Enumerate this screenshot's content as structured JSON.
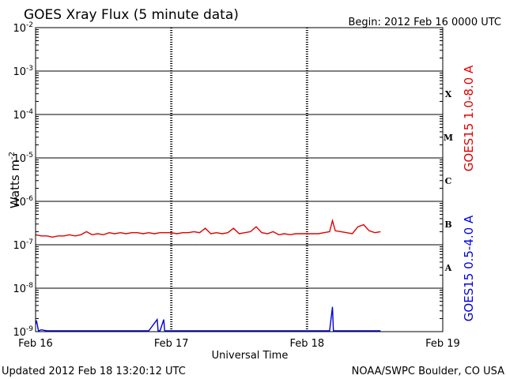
{
  "header": {
    "title": "GOES Xray Flux (5 minute data)",
    "begin": "Begin:  2012 Feb 16 0000 UTC"
  },
  "footer": {
    "updated": "Updated 2012 Feb 18 13:20:12 UTC",
    "credit": "NOAA/SWPC Boulder, CO USA"
  },
  "colors": {
    "long_channel": "#e00000",
    "short_channel": "#0000e0",
    "axis": "#000000",
    "background": "#ffffff"
  },
  "chart_data": {
    "type": "line",
    "title": "GOES Xray Flux (5 minute data)",
    "xlabel": "Universal Time",
    "ylabel": "Watts m",
    "ylabel_superscript": "-2",
    "y_scale": "log",
    "ylim": [
      1e-09,
      0.01
    ],
    "xlim": [
      "2012-02-16T00:00",
      "2012-02-19T00:00"
    ],
    "x_ticks": [
      {
        "label": "Feb 16",
        "value": "2012-02-16T00:00"
      },
      {
        "label": "Feb 17",
        "value": "2012-02-17T00:00"
      },
      {
        "label": "Feb 18",
        "value": "2012-02-18T00:00"
      },
      {
        "label": "Feb 19",
        "value": "2012-02-19T00:00"
      }
    ],
    "y_ticks": [
      {
        "base": "10",
        "exp": "-2",
        "value": 0.01
      },
      {
        "base": "10",
        "exp": "-3",
        "value": 0.001
      },
      {
        "base": "10",
        "exp": "-4",
        "value": 0.0001
      },
      {
        "base": "10",
        "exp": "-5",
        "value": 1e-05
      },
      {
        "base": "10",
        "exp": "-6",
        "value": 1e-06
      },
      {
        "base": "10",
        "exp": "-7",
        "value": 1e-07
      },
      {
        "base": "10",
        "exp": "-8",
        "value": 1e-08
      },
      {
        "base": "10",
        "exp": "-9",
        "value": 1e-09
      }
    ],
    "flare_classes": [
      {
        "label": "X",
        "value": 0.0003
      },
      {
        "label": "M",
        "value": 3e-05
      },
      {
        "label": "C",
        "value": 3e-06
      },
      {
        "label": "B",
        "value": 3e-07
      },
      {
        "label": "A",
        "value": 3e-08
      }
    ],
    "grid": true,
    "series": [
      {
        "name": "GOES15 1.0-8.0 A",
        "color": "#e00000",
        "x": [
          "2012-02-16T00:00",
          "2012-02-16T01:00",
          "2012-02-16T02:00",
          "2012-02-16T03:00",
          "2012-02-16T04:00",
          "2012-02-16T05:00",
          "2012-02-16T06:00",
          "2012-02-16T07:00",
          "2012-02-16T08:00",
          "2012-02-16T09:00",
          "2012-02-16T10:00",
          "2012-02-16T11:00",
          "2012-02-16T12:00",
          "2012-02-16T13:00",
          "2012-02-16T14:00",
          "2012-02-16T15:00",
          "2012-02-16T16:00",
          "2012-02-16T17:00",
          "2012-02-16T18:00",
          "2012-02-16T19:00",
          "2012-02-16T20:00",
          "2012-02-16T21:00",
          "2012-02-16T22:00",
          "2012-02-16T23:00",
          "2012-02-17T00:00",
          "2012-02-17T01:00",
          "2012-02-17T02:00",
          "2012-02-17T03:00",
          "2012-02-17T04:00",
          "2012-02-17T05:00",
          "2012-02-17T06:00",
          "2012-02-17T07:00",
          "2012-02-17T08:00",
          "2012-02-17T09:00",
          "2012-02-17T10:00",
          "2012-02-17T11:00",
          "2012-02-17T12:00",
          "2012-02-17T13:00",
          "2012-02-17T14:00",
          "2012-02-17T15:00",
          "2012-02-17T16:00",
          "2012-02-17T17:00",
          "2012-02-17T18:00",
          "2012-02-17T19:00",
          "2012-02-17T20:00",
          "2012-02-17T21:00",
          "2012-02-17T22:00",
          "2012-02-17T23:00",
          "2012-02-18T00:00",
          "2012-02-18T01:00",
          "2012-02-18T02:00",
          "2012-02-18T03:00",
          "2012-02-18T04:00",
          "2012-02-18T04:30",
          "2012-02-18T05:00",
          "2012-02-18T06:00",
          "2012-02-18T07:00",
          "2012-02-18T08:00",
          "2012-02-18T09:00",
          "2012-02-18T10:00",
          "2012-02-18T11:00",
          "2012-02-18T12:00",
          "2012-02-18T13:00"
        ],
        "values": [
          1.7e-07,
          1.6e-07,
          1.6e-07,
          1.5e-07,
          1.6e-07,
          1.6e-07,
          1.7e-07,
          1.6e-07,
          1.7e-07,
          2e-07,
          1.7e-07,
          1.8e-07,
          1.7e-07,
          1.9e-07,
          1.8e-07,
          1.9e-07,
          1.8e-07,
          1.9e-07,
          1.9e-07,
          1.8e-07,
          1.9e-07,
          1.8e-07,
          1.9e-07,
          1.9e-07,
          1.9e-07,
          1.8e-07,
          1.9e-07,
          1.9e-07,
          2e-07,
          1.9e-07,
          2.4e-07,
          1.8e-07,
          1.9e-07,
          1.8e-07,
          1.9e-07,
          2.4e-07,
          1.8e-07,
          1.9e-07,
          2e-07,
          2.6e-07,
          1.9e-07,
          1.8e-07,
          2e-07,
          1.7e-07,
          1.8e-07,
          1.7e-07,
          1.8e-07,
          1.8e-07,
          1.8e-07,
          1.8e-07,
          1.8e-07,
          1.9e-07,
          2e-07,
          3.6e-07,
          2.1e-07,
          2e-07,
          1.9e-07,
          1.8e-07,
          2.6e-07,
          2.9e-07,
          2.1e-07,
          1.9e-07,
          2e-07
        ]
      },
      {
        "name": "GOES15 0.5-4.0 A",
        "color": "#0000e0",
        "x": [
          "2012-02-16T00:00",
          "2012-02-16T00:10",
          "2012-02-16T00:30",
          "2012-02-16T01:00",
          "2012-02-16T02:00",
          "2012-02-16T04:00",
          "2012-02-16T06:00",
          "2012-02-16T08:00",
          "2012-02-16T10:00",
          "2012-02-16T12:00",
          "2012-02-16T14:00",
          "2012-02-16T16:00",
          "2012-02-16T18:00",
          "2012-02-16T20:00",
          "2012-02-16T21:30",
          "2012-02-16T21:40",
          "2012-02-16T22:00",
          "2012-02-16T22:40",
          "2012-02-16T22:50",
          "2012-02-17T00:00",
          "2012-02-17T04:00",
          "2012-02-17T08:00",
          "2012-02-17T12:00",
          "2012-02-17T16:00",
          "2012-02-17T20:00",
          "2012-02-17T23:00",
          "2012-02-18T00:00",
          "2012-02-18T02:00",
          "2012-02-18T04:00",
          "2012-02-18T04:30",
          "2012-02-18T04:40",
          "2012-02-18T06:00",
          "2012-02-18T10:00",
          "2012-02-18T13:00"
        ],
        "values": [
          1.5e-09,
          1.8e-09,
          1e-09,
          1.1e-09,
          9e-10,
          8e-10,
          8e-10,
          8e-10,
          8e-10,
          8e-10,
          8e-10,
          8e-10,
          8e-10,
          9e-10,
          1.9e-09,
          9e-10,
          9e-10,
          1.9e-09,
          9e-10,
          8e-10,
          8e-10,
          8e-10,
          8e-10,
          8e-10,
          9e-10,
          9e-10,
          8e-10,
          9e-10,
          1e-09,
          3.7e-09,
          9e-10,
          9e-10,
          8e-10,
          8e-10
        ]
      }
    ]
  }
}
